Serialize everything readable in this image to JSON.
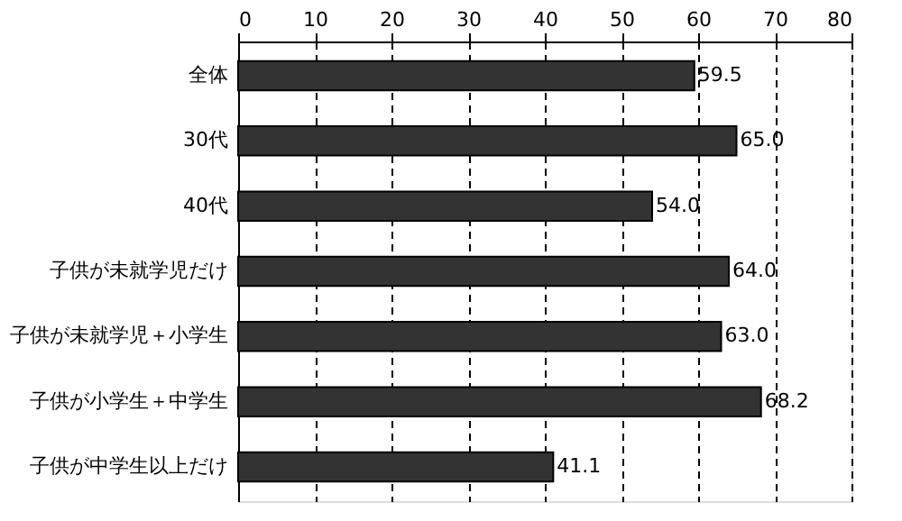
{
  "chart_data": {
    "type": "bar",
    "orientation": "horizontal",
    "categories": [
      "全体",
      "30代",
      "40代",
      "子供が未就学児だけ",
      "子供が未就学児＋小学生",
      "子供が小学生＋中学生",
      "子供が中学生以上だけ"
    ],
    "values": [
      59.5,
      65.0,
      54.0,
      64.0,
      63.0,
      68.2,
      41.1
    ],
    "value_labels": [
      "59.5",
      "65.0",
      "54.0",
      "64.0",
      "63.0",
      "68.2",
      "41.1"
    ],
    "color": "#333333",
    "xlim": [
      0,
      80
    ],
    "xticks": [
      0,
      10,
      20,
      30,
      40,
      50,
      60,
      70,
      80
    ],
    "grid": "x"
  }
}
